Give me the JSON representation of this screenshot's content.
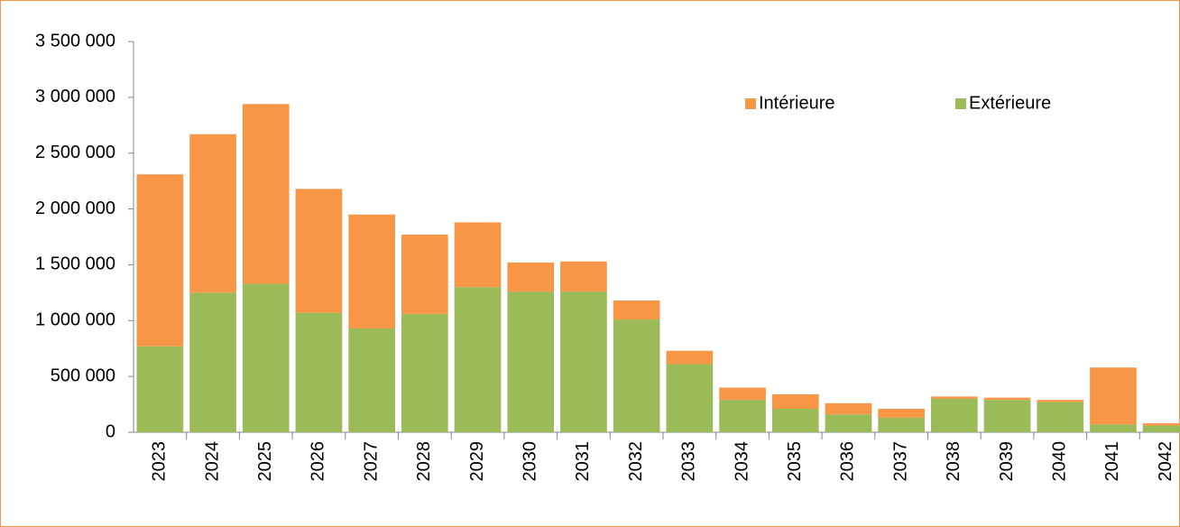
{
  "chart_data": {
    "type": "stacked-bar",
    "categories": [
      "2023",
      "2024",
      "2025",
      "2026",
      "2027",
      "2028",
      "2029",
      "2030",
      "2031",
      "2032",
      "2033",
      "2034",
      "2035",
      "2036",
      "2037",
      "2038",
      "2039",
      "2040",
      "2041",
      "2042"
    ],
    "series": [
      {
        "name": "Extérieure",
        "color": "#9bbb59",
        "values": [
          770000,
          1250000,
          1330000,
          1070000,
          930000,
          1060000,
          1300000,
          1260000,
          1260000,
          1010000,
          610000,
          290000,
          210000,
          160000,
          130000,
          300000,
          290000,
          270000,
          70000,
          60000
        ]
      },
      {
        "name": "Intérieure",
        "color": "#f79646",
        "values": [
          1540000,
          1420000,
          1610000,
          1110000,
          1020000,
          710000,
          580000,
          260000,
          270000,
          170000,
          120000,
          110000,
          130000,
          100000,
          80000,
          20000,
          20000,
          20000,
          510000,
          20000
        ]
      }
    ],
    "ylim": [
      0,
      3500000
    ],
    "yticks": [
      0,
      {
        "value": 500000,
        "label": "500 000"
      },
      {
        "value": 1000000,
        "label": "1 000 000"
      },
      {
        "value": 1500000,
        "label": "1 500 000"
      },
      {
        "value": 2000000,
        "label": "2 000 000"
      },
      {
        "value": 2500000,
        "label": "2 500 000"
      },
      {
        "value": 3000000,
        "label": "3 000 000"
      },
      {
        "value": 3500000,
        "label": "3 500 000"
      }
    ],
    "grid": false,
    "legend": "upper right"
  }
}
